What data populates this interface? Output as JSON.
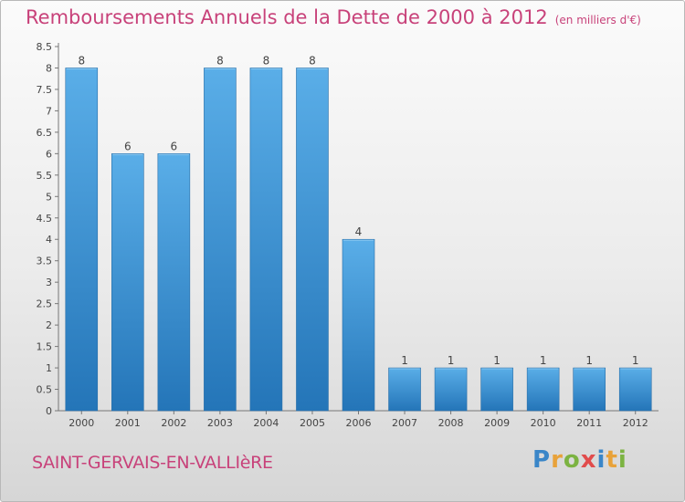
{
  "header": {
    "title": "Remboursements Annuels de la Dette de 2000 à 2012",
    "unit": "(en milliers d'€)"
  },
  "footer": {
    "commune": "SAINT-GERVAIS-EN-VALLIèRE",
    "logo": {
      "letters": [
        "P",
        "r",
        "o",
        "x",
        "i",
        "t",
        "i"
      ],
      "colors": [
        "#3a86c8",
        "#e8a23a",
        "#7cb342",
        "#e14c4c",
        "#3a86c8",
        "#e8a23a",
        "#7cb342"
      ]
    }
  },
  "colors": {
    "accent": "#c8427a",
    "bar_light": "#5aaee8",
    "bar_dark": "#2475b8"
  },
  "chart_data": {
    "type": "bar",
    "categories": [
      "2000",
      "2001",
      "2002",
      "2003",
      "2004",
      "2005",
      "2006",
      "2007",
      "2008",
      "2009",
      "2010",
      "2011",
      "2012"
    ],
    "values": [
      8,
      6,
      6,
      8,
      8,
      8,
      4,
      1,
      1,
      1,
      1,
      1,
      1
    ],
    "data_labels": [
      "8",
      "6",
      "6",
      "8",
      "8",
      "8",
      "4",
      "1",
      "1",
      "1",
      "1",
      "1",
      "1"
    ],
    "yticks": [
      "0",
      "0.5",
      "1",
      "1.5",
      "2",
      "2.5",
      "3",
      "3.5",
      "4",
      "4.5",
      "5",
      "5.5",
      "6",
      "6.5",
      "7",
      "7.5",
      "8",
      "8.5"
    ],
    "ylim": [
      0,
      8.5
    ],
    "grid": false,
    "legend": "none"
  }
}
